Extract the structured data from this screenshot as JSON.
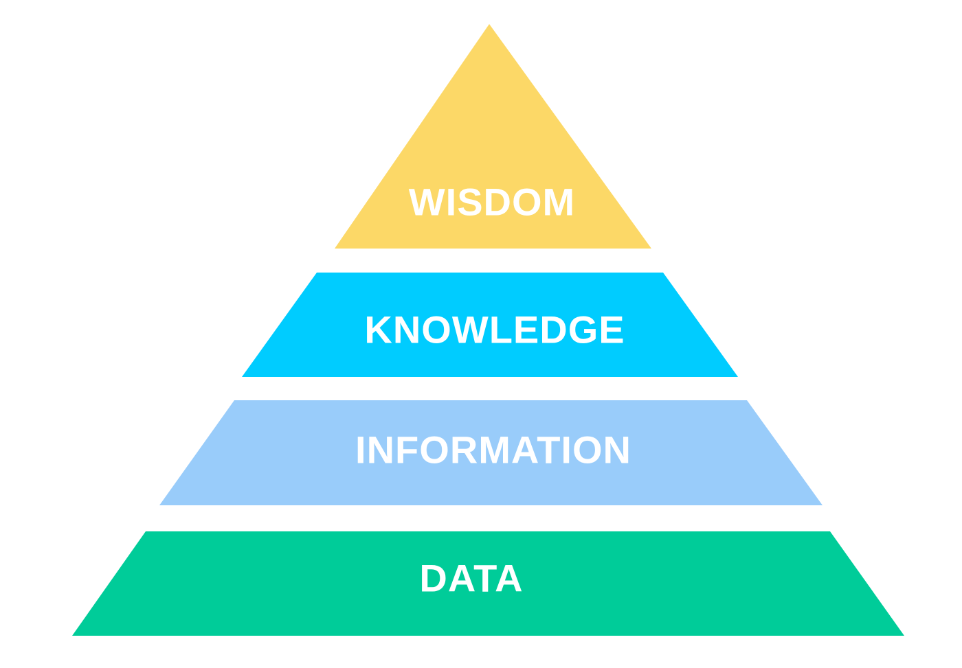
{
  "diagram": {
    "type": "pyramid",
    "background": "#ffffff",
    "label_color": "#ffffff",
    "tiers": [
      {
        "label": "WISDOM",
        "color": "#FCD867"
      },
      {
        "label": "KNOWLEDGE",
        "color": "#00CCFF"
      },
      {
        "label": "INFORMATION",
        "color": "#99CCFA"
      },
      {
        "label": "DATA",
        "color": "#00CC99"
      }
    ]
  }
}
